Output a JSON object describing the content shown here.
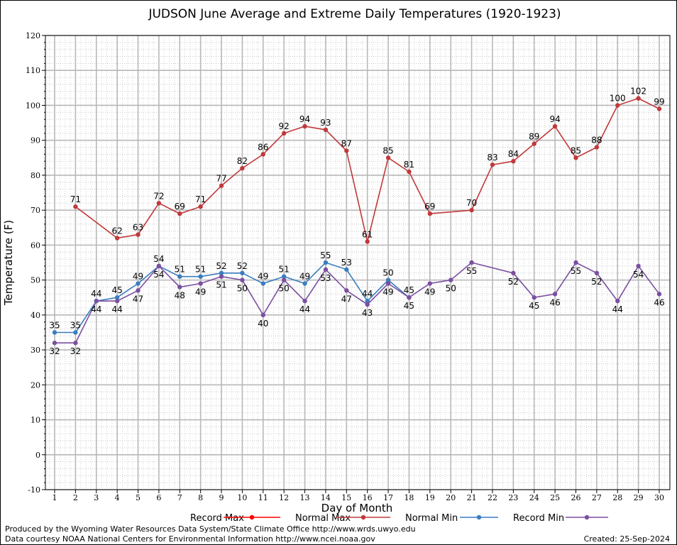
{
  "chart_data": {
    "type": "line",
    "title": "JUDSON June Average and Extreme Daily Temperatures (1920-1923)",
    "xlabel": "Day of Month",
    "ylabel": "Temperature (F)",
    "xlim": [
      1,
      30
    ],
    "ylim": [
      -10,
      120
    ],
    "y_ticks": [
      -10,
      0,
      10,
      20,
      30,
      40,
      50,
      60,
      70,
      80,
      90,
      100,
      110,
      120
    ],
    "x_ticks": [
      1,
      2,
      3,
      4,
      5,
      6,
      7,
      8,
      9,
      10,
      11,
      12,
      13,
      14,
      15,
      16,
      17,
      18,
      19,
      20,
      21,
      22,
      23,
      24,
      25,
      26,
      27,
      28,
      29,
      30
    ],
    "grid": true,
    "legend_position": "bottom",
    "series": [
      {
        "name": "Record Max",
        "color": "#ff0000",
        "x": [],
        "values": []
      },
      {
        "name": "Normal Max",
        "color": "#c0393b",
        "x": [
          2,
          4,
          5,
          6,
          7,
          8,
          9,
          10,
          11,
          12,
          13,
          14,
          15,
          16,
          17,
          18,
          19,
          21,
          22,
          23,
          24,
          25,
          26,
          27,
          28,
          29,
          30
        ],
        "values": [
          71,
          62,
          63,
          72,
          69,
          71,
          77,
          82,
          86,
          92,
          94,
          93,
          87,
          61,
          85,
          81,
          69,
          70,
          83,
          84,
          89,
          94,
          85,
          88,
          100,
          102,
          99
        ]
      },
      {
        "name": "Normal Min",
        "color": "#3a7ebf",
        "x": [
          1,
          2,
          3,
          4,
          5,
          6,
          7,
          8,
          9,
          10,
          11,
          12,
          13,
          14,
          15,
          16,
          17,
          18
        ],
        "values": [
          35,
          35,
          44,
          45,
          49,
          54,
          51,
          51,
          52,
          52,
          49,
          51,
          49,
          55,
          53,
          44,
          50,
          45
        ]
      },
      {
        "name": "Record Min",
        "color": "#7b4fa0",
        "x": [
          1,
          2,
          3,
          4,
          5,
          6,
          7,
          8,
          9,
          10,
          11,
          12,
          13,
          14,
          15,
          16,
          17,
          18,
          19,
          20,
          21,
          23,
          24,
          25,
          26,
          27,
          28,
          29,
          30
        ],
        "values": [
          32,
          32,
          44,
          44,
          47,
          54,
          48,
          49,
          51,
          50,
          40,
          50,
          44,
          53,
          47,
          43,
          49,
          45,
          49,
          50,
          55,
          52,
          45,
          46,
          55,
          52,
          44,
          54,
          46
        ]
      }
    ]
  },
  "footer": {
    "produced_by": "Produced by the Wyoming Water Resources Data System/State Climate Office http://www.wrds.uwyo.edu",
    "data_courtesy": "Data courtesy NOAA National Centers for Environmental Information http://www.ncei.noaa.gov",
    "created": "Created: 25-Sep-2024"
  }
}
